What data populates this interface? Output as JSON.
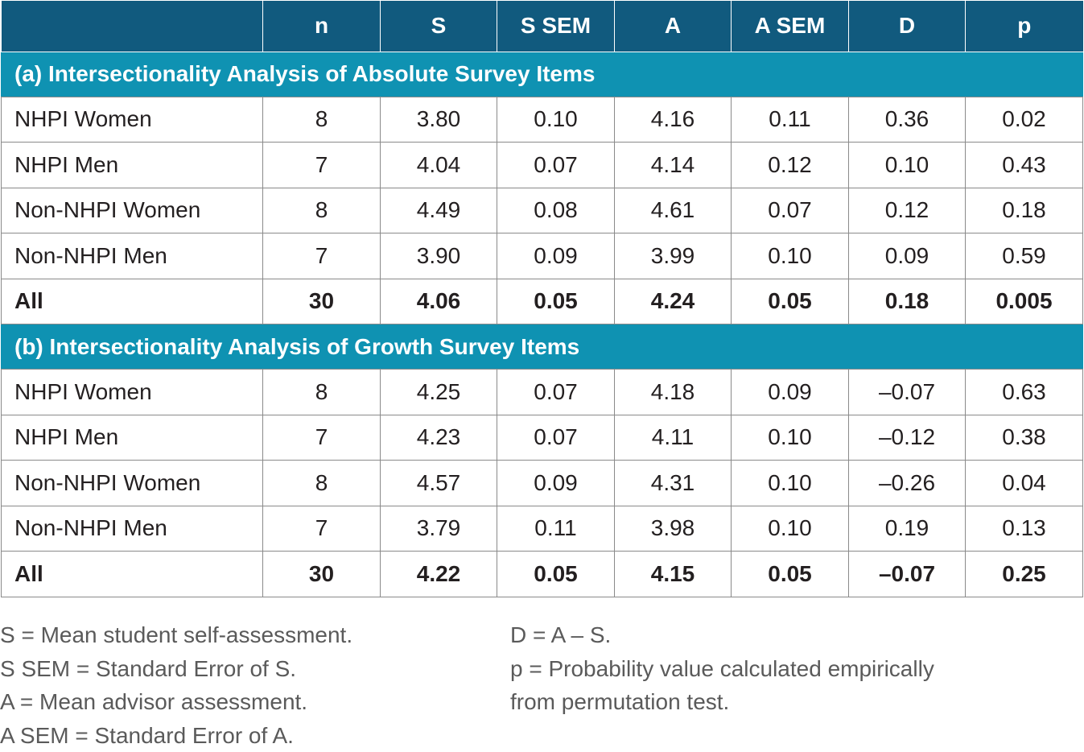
{
  "header": {
    "col0": "",
    "n": "n",
    "s": "S",
    "s_sem": "S SEM",
    "a": "A",
    "a_sem": "A SEM",
    "d": "D",
    "p": "p"
  },
  "sections": [
    {
      "title": "(a) Intersectionality Analysis of Absolute Survey Items",
      "rows": [
        [
          "NHPI Women",
          "8",
          "3.80",
          "0.10",
          "4.16",
          "0.11",
          "0.36",
          "0.02"
        ],
        [
          "NHPI Men",
          "7",
          "4.04",
          "0.07",
          "4.14",
          "0.12",
          "0.10",
          "0.43"
        ],
        [
          "Non-NHPI Women",
          "8",
          "4.49",
          "0.08",
          "4.61",
          "0.07",
          "0.12",
          "0.18"
        ],
        [
          "Non-NHPI Men",
          "7",
          "3.90",
          "0.09",
          "3.99",
          "0.10",
          "0.09",
          "0.59"
        ],
        [
          "All",
          "30",
          "4.06",
          "0.05",
          "4.24",
          "0.05",
          "0.18",
          "0.005"
        ]
      ]
    },
    {
      "title": "(b) Intersectionality Analysis of Growth Survey Items",
      "rows": [
        [
          "NHPI Women",
          "8",
          "4.25",
          "0.07",
          "4.18",
          "0.09",
          "–0.07",
          "0.63"
        ],
        [
          "NHPI Men",
          "7",
          "4.23",
          "0.07",
          "4.11",
          "0.10",
          "–0.12",
          "0.38"
        ],
        [
          "Non-NHPI Women",
          "8",
          "4.57",
          "0.09",
          "4.31",
          "0.10",
          "–0.26",
          "0.04"
        ],
        [
          "Non-NHPI Men",
          "7",
          "3.79",
          "0.11",
          "3.98",
          "0.10",
          "0.19",
          "0.13"
        ],
        [
          "All",
          "30",
          "4.22",
          "0.05",
          "4.15",
          "0.05",
          "–0.07",
          "0.25"
        ]
      ]
    }
  ],
  "notes_left": [
    "S = Mean student self-assessment.",
    "S SEM = Standard Error of S.",
    "A = Mean advisor assessment.",
    "A SEM = Standard Error of A."
  ],
  "notes_right": [
    "D = A – S.",
    "p = Probability value calculated empirically",
    "from permutation test."
  ],
  "colors": {
    "header_bg": "#115a7e",
    "section_bg": "#0f92b2",
    "text": "#231f20",
    "notes_text": "#5a5a5a"
  }
}
